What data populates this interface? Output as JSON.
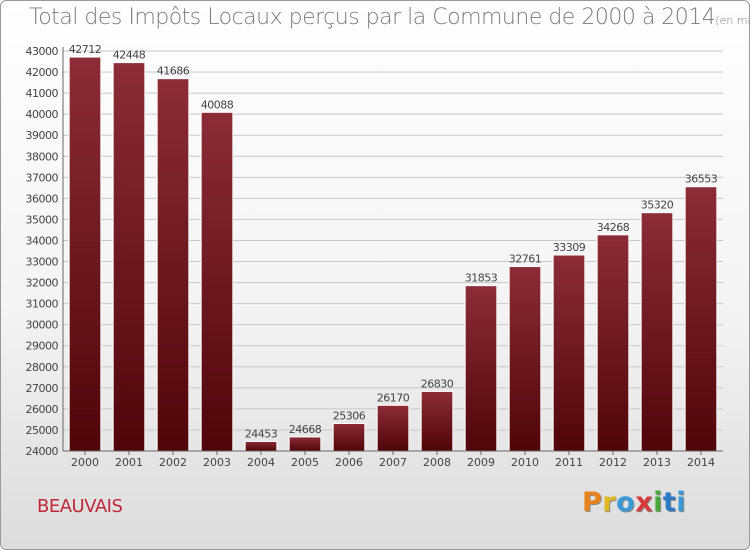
{
  "header": {
    "title": "Total des Impôts Locaux perçus par la Commune de 2000 à 2014",
    "unit": "(en milliers d'€)"
  },
  "footer": {
    "commune": "BEAUVAIS",
    "logo": "Proxiti",
    "logo_colors": [
      "#e8821a",
      "#e0b820",
      "#3a9ad8",
      "#d83a3a",
      "#49a838",
      "#2a7ac8",
      "#3a9ad8"
    ]
  },
  "colors": {
    "bar_top": "#8c2c36",
    "bar_bottom": "#4f0509",
    "grid": "#c8c8c8",
    "commune": "#c0283a"
  },
  "chart_data": {
    "type": "bar",
    "title": "Total des Impôts Locaux perçus par la Commune de 2000 à 2014",
    "subtitle": "(en milliers d'€)",
    "categories": [
      "2000",
      "2001",
      "2002",
      "2003",
      "2004",
      "2005",
      "2006",
      "2007",
      "2008",
      "2009",
      "2010",
      "2011",
      "2012",
      "2013",
      "2014"
    ],
    "values": [
      42712,
      42448,
      41686,
      40088,
      24453,
      24668,
      25306,
      26170,
      26830,
      31853,
      32761,
      33309,
      34268,
      35320,
      36553
    ],
    "value_labels": [
      "42712",
      "42448",
      "41686",
      "40088",
      "24453",
      "24668",
      "25306",
      "26170",
      "26830",
      "31853",
      "32761",
      "33309",
      "34268",
      "35320",
      "36553"
    ],
    "ylim": [
      24000,
      43000
    ],
    "yticks": [
      "24000",
      "25000",
      "26000",
      "27000",
      "28000",
      "29000",
      "30000",
      "31000",
      "32000",
      "33000",
      "34000",
      "35000",
      "36000",
      "37000",
      "38000",
      "39000",
      "40000",
      "41000",
      "42000",
      "43000"
    ],
    "grid": true,
    "legend": "none"
  }
}
